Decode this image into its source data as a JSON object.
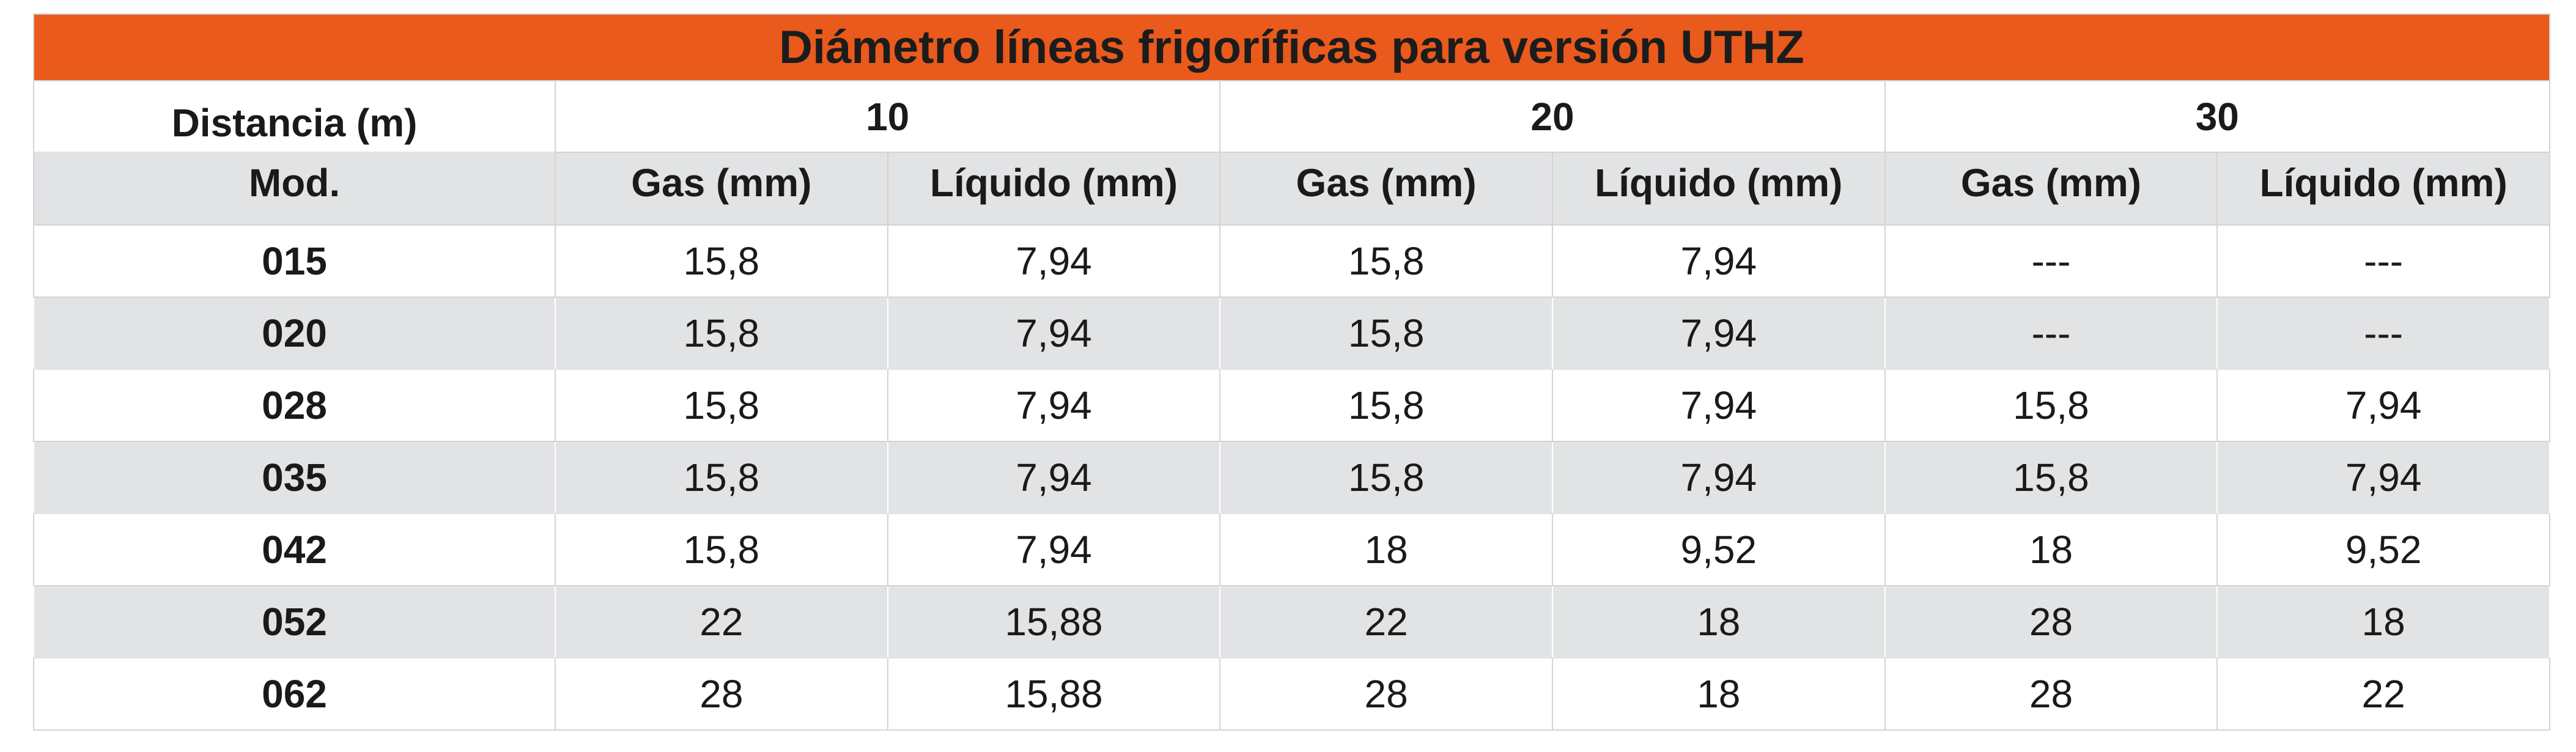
{
  "table": {
    "title": "Diámetro líneas frigoríficas para versión UTHZ",
    "distance_label": "Distancia (m)",
    "distances": [
      "10",
      "20",
      "30"
    ],
    "model_label": "Mod.",
    "sub_headers": [
      "Gas (mm)",
      "Líquido (mm)",
      "Gas (mm)",
      "Líquido (mm)",
      "Gas (mm)",
      "Líquido (mm)"
    ],
    "rows": [
      {
        "model": "015",
        "values": [
          "15,8",
          "7,94",
          "15,8",
          "7,94",
          "---",
          "---"
        ]
      },
      {
        "model": "020",
        "values": [
          "15,8",
          "7,94",
          "15,8",
          "7,94",
          "---",
          "---"
        ]
      },
      {
        "model": "028",
        "values": [
          "15,8",
          "7,94",
          "15,8",
          "7,94",
          "15,8",
          "7,94"
        ]
      },
      {
        "model": "035",
        "values": [
          "15,8",
          "7,94",
          "15,8",
          "7,94",
          "15,8",
          "7,94"
        ]
      },
      {
        "model": "042",
        "values": [
          "15,8",
          "7,94",
          "18",
          "9,52",
          "18",
          "9,52"
        ]
      },
      {
        "model": "052",
        "values": [
          "22",
          "15,88",
          "22",
          "18",
          "28",
          "18"
        ]
      },
      {
        "model": "062",
        "values": [
          "28",
          "15,88",
          "28",
          "18",
          "28",
          "22"
        ]
      }
    ]
  },
  "colors": {
    "header_accent": "#e95a1c",
    "band_gray": "#e2e3e5",
    "text": "#1a1a1a"
  }
}
